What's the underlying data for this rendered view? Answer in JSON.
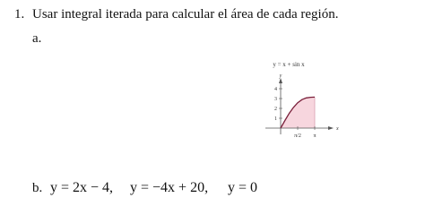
{
  "problem": {
    "number": "1.",
    "statement": "Usar integral iterada para calcular el área de cada región.",
    "part_a": {
      "label": "a.",
      "figure": {
        "caption": "y = x + sin x",
        "y_label": "y",
        "x_label": "x",
        "yticks": [
          "1",
          "2",
          "3",
          "4"
        ],
        "xticks": [
          "π/2",
          "π"
        ]
      }
    },
    "part_b": {
      "label": "b.",
      "equations": [
        "y = 2x − 4,",
        "y = −4x + 20,",
        "y = 0"
      ]
    }
  }
}
